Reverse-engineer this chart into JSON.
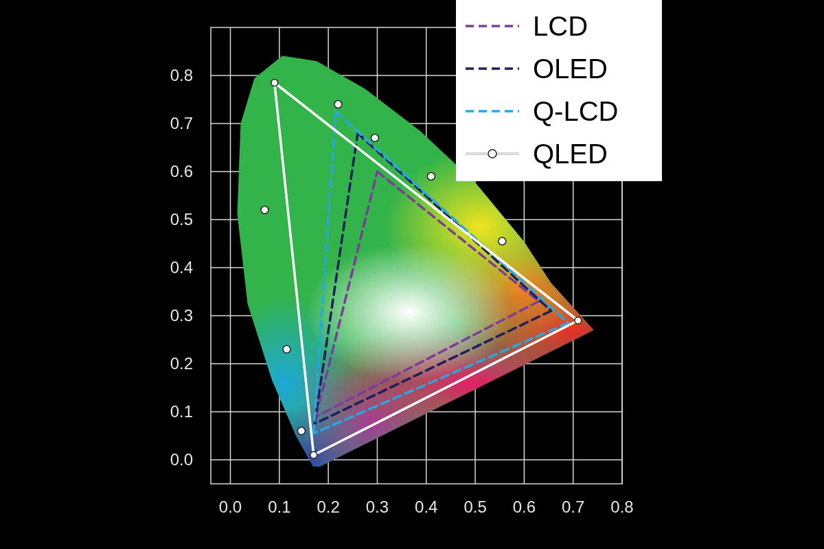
{
  "chart_data": {
    "type": "line",
    "xlim": [
      -0.04,
      0.8
    ],
    "ylim": [
      -0.05,
      0.9
    ],
    "xticks": [
      {
        "value": 0,
        "label": "0.0"
      },
      0.1,
      0.2,
      0.3,
      0.4,
      0.5,
      0.6,
      0.7,
      0.8
    ],
    "yticks": [
      {
        "value": 0,
        "label": "0.0"
      },
      0.1,
      0.2,
      0.3,
      0.4,
      0.5,
      0.6,
      0.7,
      0.8
    ],
    "grid": true,
    "legend": "top right",
    "series": [
      {
        "name": "LCD",
        "color": "#7d3c98",
        "line_style": "dashed",
        "marker": "none",
        "x": [
          0.3,
          0.63,
          0.175,
          0.3
        ],
        "values": [
          0.6,
          0.33,
          0.09,
          0.6
        ]
      },
      {
        "name": "OLED",
        "color": "#1f1f5c",
        "line_style": "dashed",
        "marker": "none",
        "x": [
          0.26,
          0.655,
          0.172,
          0.26
        ],
        "values": [
          0.68,
          0.31,
          0.075,
          0.68
        ]
      },
      {
        "name": "Q-LCD",
        "color": "#29a8e0",
        "line_style": "dashed",
        "marker": "none",
        "x": [
          0.215,
          0.69,
          0.17,
          0.215
        ],
        "values": [
          0.725,
          0.285,
          0.055,
          0.725
        ]
      },
      {
        "name": "QLED",
        "color": "#ffffff",
        "line_style": "solid",
        "marker": "circle",
        "x": [
          0.09,
          0.71,
          0.17,
          0.09
        ],
        "values": [
          0.785,
          0.29,
          0.01,
          0.785
        ]
      },
      {
        "type": "scatter",
        "color": "#ffffff",
        "marker": "circle",
        "x": [
          0.22,
          0.295,
          0.41,
          0.555,
          0.145,
          0.115,
          0.07
        ],
        "values": [
          0.74,
          0.67,
          0.59,
          0.455,
          0.06,
          0.23,
          0.52
        ]
      }
    ]
  }
}
